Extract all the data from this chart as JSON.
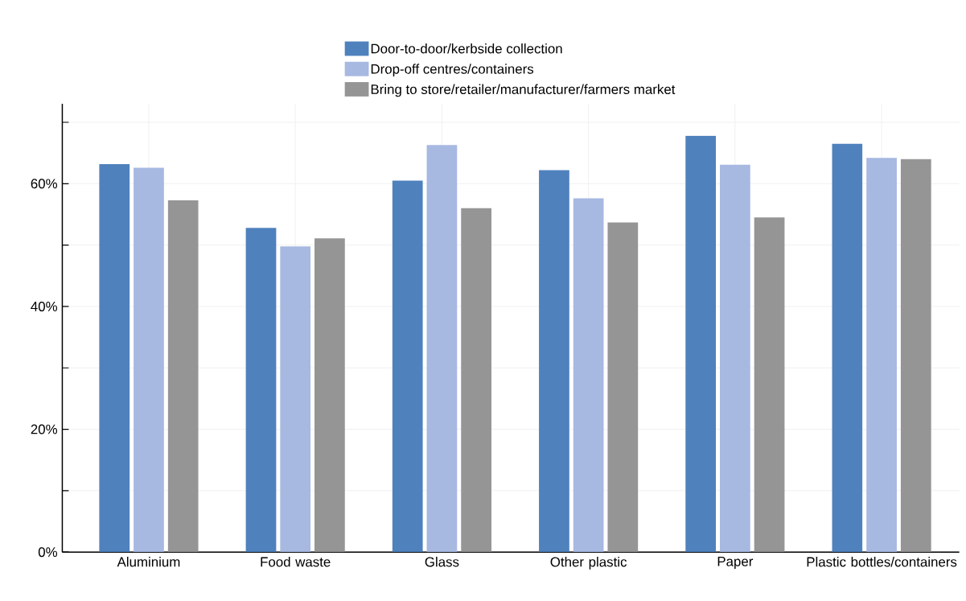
{
  "chart_data": {
    "type": "bar",
    "categories": [
      "Aluminium",
      "Food waste",
      "Glass",
      "Other plastic",
      "Paper",
      "Plastic bottles/containers"
    ],
    "series": [
      {
        "name": "Door-to-door/kerbside collection",
        "color": "#4f81bd",
        "values": [
          63.2,
          52.8,
          60.5,
          62.2,
          67.8,
          66.5
        ]
      },
      {
        "name": "Drop-off centres/containers",
        "color": "#a7b8e1",
        "values": [
          62.6,
          49.8,
          66.3,
          57.6,
          63.1,
          64.2
        ]
      },
      {
        "name": "Bring to store/retailer/manufacturer/farmers market",
        "color": "#959595",
        "values": [
          57.3,
          51.1,
          56.0,
          53.7,
          54.5,
          64.0
        ]
      }
    ],
    "ylim": [
      0,
      73
    ],
    "yticks": [
      {
        "value": 0,
        "label": "0%"
      },
      {
        "value": 10,
        "label": null
      },
      {
        "value": 20,
        "label": "20%"
      },
      {
        "value": 30,
        "label": null
      },
      {
        "value": 40,
        "label": "40%"
      },
      {
        "value": 50,
        "label": null
      },
      {
        "value": 60,
        "label": "60%"
      },
      {
        "value": 70,
        "label": null
      }
    ],
    "grid": true,
    "legend": "top"
  }
}
